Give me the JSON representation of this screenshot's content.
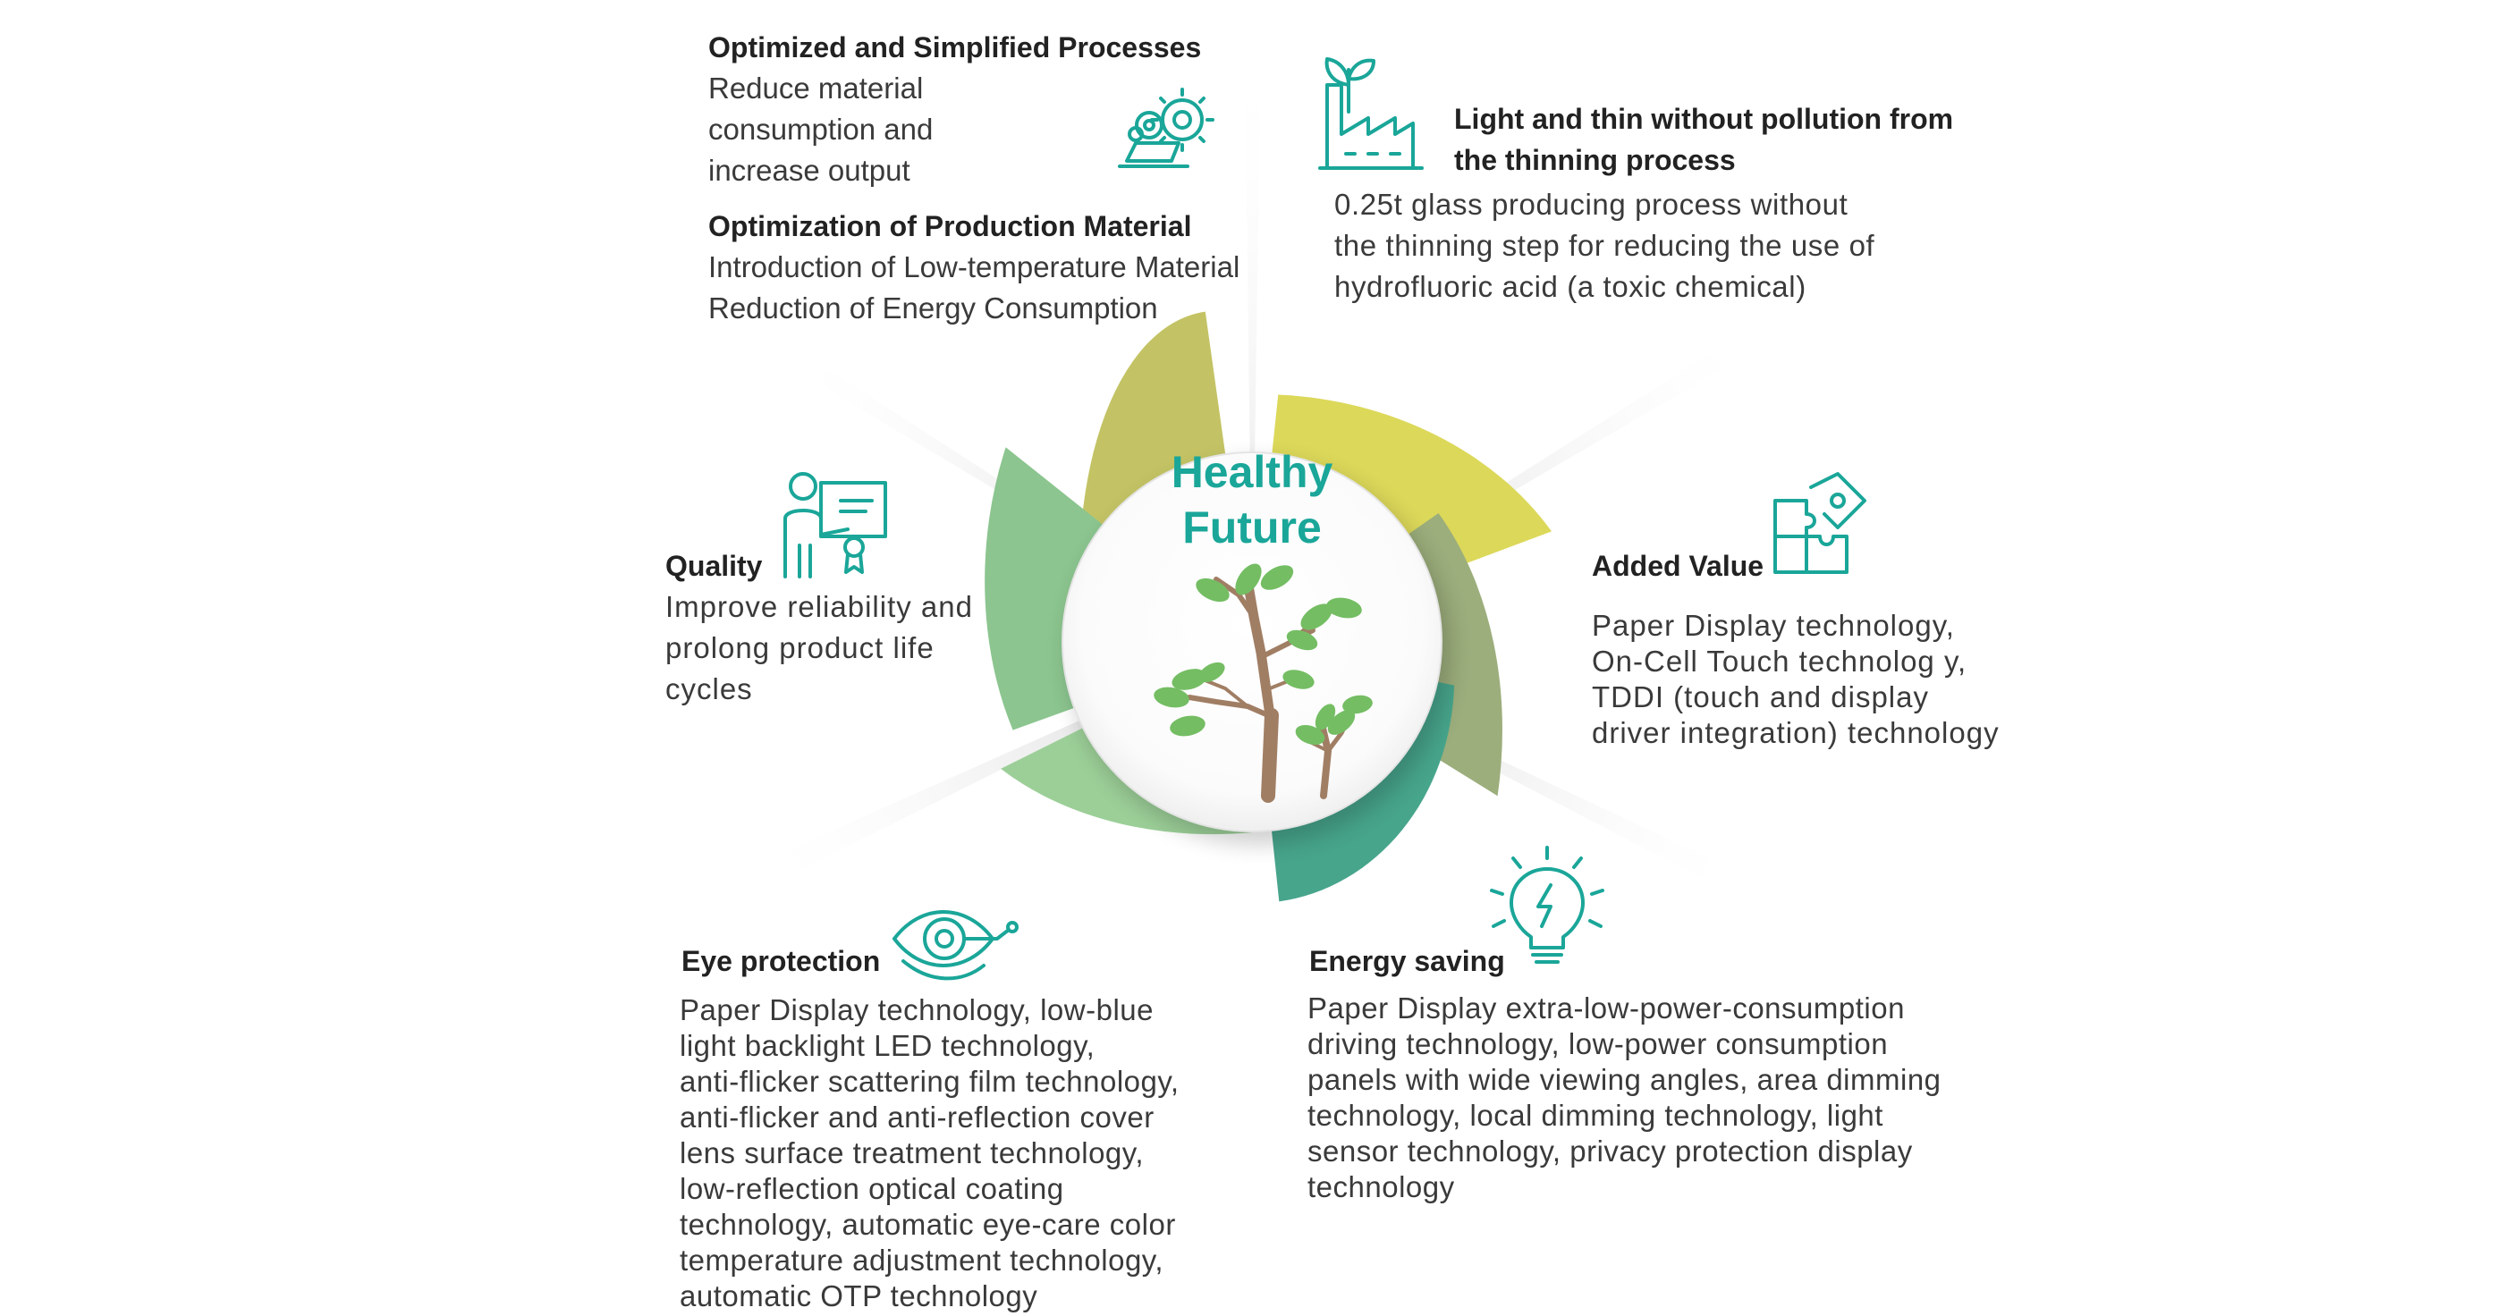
{
  "center": {
    "title_line1": "Healthy",
    "title_line2": "Future"
  },
  "colors": {
    "accent_teal": "#1aa699",
    "petal_olive": "#c3c365",
    "petal_yellow": "#dcd85a",
    "petal_sage": "#9cae7c",
    "petal_teal": "#47a58c",
    "petal_light_green": "#9ccf98",
    "petal_green": "#8cc58f",
    "trunk": "#a07e64",
    "leaf": "#74bd63"
  },
  "sections": {
    "process": {
      "heading": "Optimized and Simplified Processes",
      "lines": [
        "Reduce material",
        "consumption and",
        "increase output"
      ],
      "icon": "gears-laptop-icon"
    },
    "material": {
      "heading": "Optimization of Production Material",
      "lines": [
        "Introduction of Low-temperature Material",
        "Reduction of Energy Consumption"
      ]
    },
    "light_thin": {
      "heading_lines": [
        "Light and thin without pollution from",
        "the thinning process"
      ],
      "lines": [
        "0.25t glass producing process without",
        "the thinning step for reducing the use of",
        "hydrofluoric acid (a toxic chemical)"
      ],
      "icon": "factory-plant-icon"
    },
    "quality": {
      "heading": "Quality",
      "lines": [
        "Improve reliability and",
        "prolong product life",
        "cycles"
      ],
      "icon": "presenter-certificate-icon"
    },
    "added_value": {
      "heading": "Added Value",
      "lines": [
        "Paper Display technology,",
        "On-Cell Touch technolog y,",
        "TDDI (touch and display",
        "driver integration) technology"
      ],
      "icon": "puzzle-icon"
    },
    "eye": {
      "heading": "Eye protection",
      "lines": [
        "Paper Display technology, low-blue",
        "light backlight LED technology,",
        "anti-flicker scattering film technology,",
        "anti-flicker and anti-reflection cover",
        "lens surface treatment technology,",
        "low-reflection optical coating",
        "technology, automatic eye-care color",
        "temperature adjustment technology,",
        "automatic OTP technology"
      ],
      "icon": "eye-scan-icon"
    },
    "energy": {
      "heading": "Energy saving",
      "lines": [
        "Paper Display extra-low-power-consumption",
        "driving technology, low-power consumption",
        "panels with wide viewing angles, area dimming",
        "technology, local dimming technology, light",
        "sensor technology, privacy protection display",
        "technology"
      ],
      "icon": "lightbulb-bolt-icon"
    }
  }
}
